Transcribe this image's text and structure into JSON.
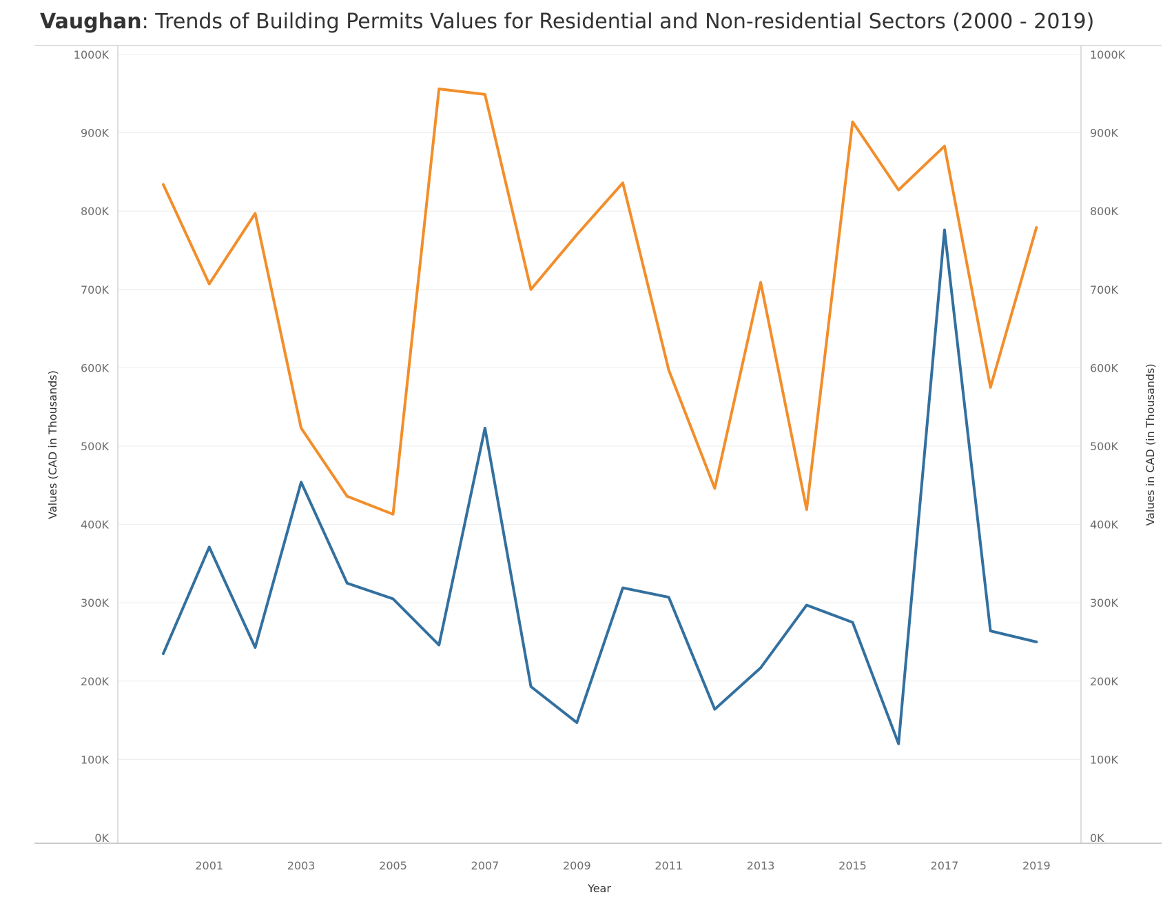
{
  "title": {
    "bold": "Vaughan",
    "rest": ": Trends of Building Permits Values for Residential and Non-residential Sectors (2000 - 2019)"
  },
  "chart_data": {
    "type": "line",
    "title": "Vaughan: Trends of Building Permits Values for Residential and Non-residential Sectors (2000 - 2019)",
    "xlabel": "Year",
    "ylabel_left": "Values (CAD in Thousands)",
    "ylabel_right": "Values in CAD (in Thousands)",
    "x": [
      2000,
      2001,
      2002,
      2003,
      2004,
      2005,
      2006,
      2007,
      2008,
      2009,
      2010,
      2011,
      2012,
      2013,
      2014,
      2015,
      2016,
      2017,
      2018,
      2019
    ],
    "x_tick_labels": [
      "2001",
      "2003",
      "2005",
      "2007",
      "2009",
      "2011",
      "2013",
      "2015",
      "2017",
      "2019"
    ],
    "ylim": [
      0,
      1000
    ],
    "y_tick_labels": [
      "0K",
      "100K",
      "200K",
      "300K",
      "400K",
      "500K",
      "600K",
      "700K",
      "800K",
      "900K",
      "1000K"
    ],
    "y_tick_values": [
      0,
      100,
      200,
      300,
      400,
      500,
      600,
      700,
      800,
      900,
      1000
    ],
    "grid": true,
    "legend": "none",
    "series": [
      {
        "color": "#f28e2b",
        "values": [
          834,
          707,
          797,
          523,
          436,
          413,
          956,
          949,
          700,
          770,
          836,
          597,
          446,
          709,
          419,
          914,
          827,
          883,
          575,
          779
        ]
      },
      {
        "color": "#33709f",
        "values": [
          235,
          371,
          243,
          454,
          325,
          305,
          246,
          523,
          193,
          147,
          319,
          307,
          164,
          217,
          297,
          275,
          120,
          776,
          264,
          250
        ]
      }
    ]
  }
}
